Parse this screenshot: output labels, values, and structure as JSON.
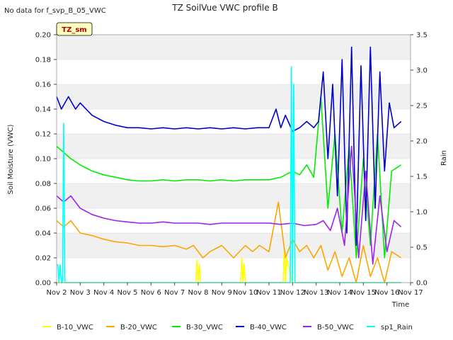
{
  "no_data_note": "No data for f_svp_B_05_VWC",
  "chart_data": {
    "type": "line",
    "title": "TZ SoilVue VWC profile B",
    "xlabel": "Time",
    "ylabel": "Soil Moisture (VWC)",
    "y2label": "Rain",
    "badge": "TZ_sm",
    "x_ticks": [
      "Nov 2",
      "Nov 3",
      "Nov 4",
      "Nov 5",
      "Nov 6",
      "Nov 7",
      "Nov 8",
      "Nov 9",
      "Nov 10",
      "Nov 11",
      "Nov 12",
      "Nov 13",
      "Nov 14",
      "Nov 15",
      "Nov 16",
      "Nov 17"
    ],
    "xlim": [
      0,
      15
    ],
    "ylim": [
      0,
      0.2
    ],
    "y_ticks": [
      "0.00",
      "0.02",
      "0.04",
      "0.06",
      "0.08",
      "0.10",
      "0.12",
      "0.14",
      "0.16",
      "0.18",
      "0.20"
    ],
    "y2lim": [
      0,
      3.5
    ],
    "y2_ticks": [
      "0.0",
      "0.5",
      "1.0",
      "1.5",
      "2.0",
      "2.5",
      "3.0",
      "3.5"
    ],
    "grid": "horizontal bands",
    "legend_position": "bottom",
    "series": [
      {
        "name": "B-10_VWC",
        "color": "#ffff00",
        "axis": "left",
        "x": [
          0,
          1,
          2,
          3,
          4,
          5,
          5.9,
          5.95,
          6,
          6.05,
          6.1,
          7.8,
          7.85,
          7.9,
          7.95,
          8,
          9.6,
          9.65,
          9.7,
          9.75,
          10,
          11,
          12,
          13,
          14,
          14.6
        ],
        "y": [
          0,
          0,
          0,
          0,
          0,
          0,
          0,
          0.018,
          0.0,
          0.015,
          0,
          0,
          0.02,
          0.0,
          0.015,
          0,
          0,
          0.03,
          0,
          0.02,
          0,
          0,
          0,
          0,
          0,
          0
        ]
      },
      {
        "name": "B-20_VWC",
        "color": "#ffa500",
        "axis": "left",
        "x": [
          0,
          0.3,
          0.6,
          1,
          1.5,
          2,
          2.5,
          3,
          3.5,
          4,
          4.5,
          5,
          5.5,
          5.8,
          6.2,
          6.5,
          7,
          7.5,
          8,
          8.3,
          8.6,
          9,
          9.4,
          9.7,
          10,
          10.3,
          10.6,
          10.9,
          11.2,
          11.5,
          11.8,
          12.1,
          12.4,
          12.7,
          13,
          13.3,
          13.6,
          13.9,
          14.2,
          14.6
        ],
        "y": [
          0.05,
          0.045,
          0.05,
          0.04,
          0.038,
          0.035,
          0.033,
          0.032,
          0.03,
          0.03,
          0.029,
          0.03,
          0.027,
          0.03,
          0.02,
          0.025,
          0.03,
          0.02,
          0.03,
          0.025,
          0.03,
          0.025,
          0.065,
          0.02,
          0.035,
          0.025,
          0.03,
          0.02,
          0.03,
          0.01,
          0.025,
          0.005,
          0.02,
          0.0,
          0.03,
          0.005,
          0.02,
          0.0,
          0.025,
          0.02
        ]
      },
      {
        "name": "B-30_VWC",
        "color": "#00ee00",
        "axis": "left",
        "x": [
          0,
          0.3,
          0.6,
          1,
          1.5,
          2,
          2.5,
          3,
          3.5,
          4,
          4.5,
          5,
          5.5,
          6,
          6.5,
          7,
          7.5,
          8,
          8.5,
          9,
          9.5,
          10,
          10.3,
          10.6,
          10.9,
          11.2,
          11.5,
          11.8,
          12.1,
          12.4,
          12.7,
          13,
          13.3,
          13.6,
          13.9,
          14.2,
          14.6
        ],
        "y": [
          0.11,
          0.105,
          0.1,
          0.095,
          0.09,
          0.087,
          0.085,
          0.083,
          0.082,
          0.082,
          0.083,
          0.082,
          0.083,
          0.083,
          0.082,
          0.083,
          0.082,
          0.083,
          0.083,
          0.083,
          0.085,
          0.09,
          0.087,
          0.095,
          0.085,
          0.15,
          0.06,
          0.12,
          0.04,
          0.11,
          0.02,
          0.1,
          0.03,
          0.12,
          0.02,
          0.09,
          0.095
        ]
      },
      {
        "name": "B-40_VWC",
        "color": "#0000cd",
        "axis": "left",
        "x": [
          0,
          0.2,
          0.5,
          0.8,
          1,
          1.5,
          2,
          2.5,
          3,
          3.5,
          4,
          4.5,
          5,
          5.5,
          6,
          6.5,
          7,
          7.5,
          8,
          8.5,
          9,
          9.3,
          9.5,
          9.7,
          10,
          10.3,
          10.6,
          10.9,
          11.1,
          11.3,
          11.5,
          11.7,
          11.9,
          12.1,
          12.3,
          12.5,
          12.7,
          12.9,
          13.1,
          13.3,
          13.5,
          13.7,
          13.9,
          14.1,
          14.3,
          14.6
        ],
        "y": [
          0.15,
          0.14,
          0.15,
          0.14,
          0.145,
          0.135,
          0.13,
          0.127,
          0.125,
          0.125,
          0.124,
          0.125,
          0.124,
          0.125,
          0.124,
          0.125,
          0.124,
          0.125,
          0.124,
          0.125,
          0.125,
          0.14,
          0.125,
          0.135,
          0.122,
          0.125,
          0.13,
          0.125,
          0.13,
          0.17,
          0.1,
          0.16,
          0.07,
          0.18,
          0.04,
          0.19,
          0.03,
          0.175,
          0.05,
          0.19,
          0.06,
          0.17,
          0.09,
          0.145,
          0.125,
          0.13
        ]
      },
      {
        "name": "B-50_VWC",
        "color": "#a020f0",
        "axis": "left",
        "x": [
          0,
          0.3,
          0.6,
          1,
          1.5,
          2,
          2.5,
          3,
          3.5,
          4,
          4.5,
          5,
          5.5,
          6,
          6.5,
          7,
          7.5,
          8,
          8.5,
          9,
          9.5,
          10,
          10.5,
          11,
          11.3,
          11.6,
          11.9,
          12.2,
          12.5,
          12.8,
          13.1,
          13.4,
          13.7,
          14,
          14.3,
          14.6
        ],
        "y": [
          0.07,
          0.065,
          0.07,
          0.06,
          0.055,
          0.052,
          0.05,
          0.049,
          0.048,
          0.048,
          0.049,
          0.048,
          0.048,
          0.048,
          0.047,
          0.048,
          0.048,
          0.048,
          0.048,
          0.048,
          0.047,
          0.048,
          0.046,
          0.047,
          0.05,
          0.042,
          0.06,
          0.03,
          0.11,
          0.02,
          0.09,
          0.015,
          0.07,
          0.025,
          0.05,
          0.045
        ]
      },
      {
        "name": "sp1_Rain",
        "color": "#00ffff",
        "axis": "right",
        "x": [
          0,
          0.05,
          0.1,
          0.15,
          0.2,
          0.25,
          0.3,
          0.35,
          0.5,
          1,
          2,
          3,
          4,
          5,
          6,
          7,
          8,
          9,
          9.9,
          9.95,
          10,
          10.05,
          10.1,
          10.5,
          11,
          12,
          13,
          14,
          14.6
        ],
        "y": [
          0.25,
          0.25,
          0.0,
          0.25,
          0.0,
          0.0,
          2.25,
          0.0,
          0,
          0,
          0,
          0,
          0,
          0,
          0,
          0,
          0,
          0,
          0,
          3.05,
          0,
          2.8,
          0,
          0,
          0,
          0,
          0,
          0,
          0
        ]
      }
    ]
  }
}
